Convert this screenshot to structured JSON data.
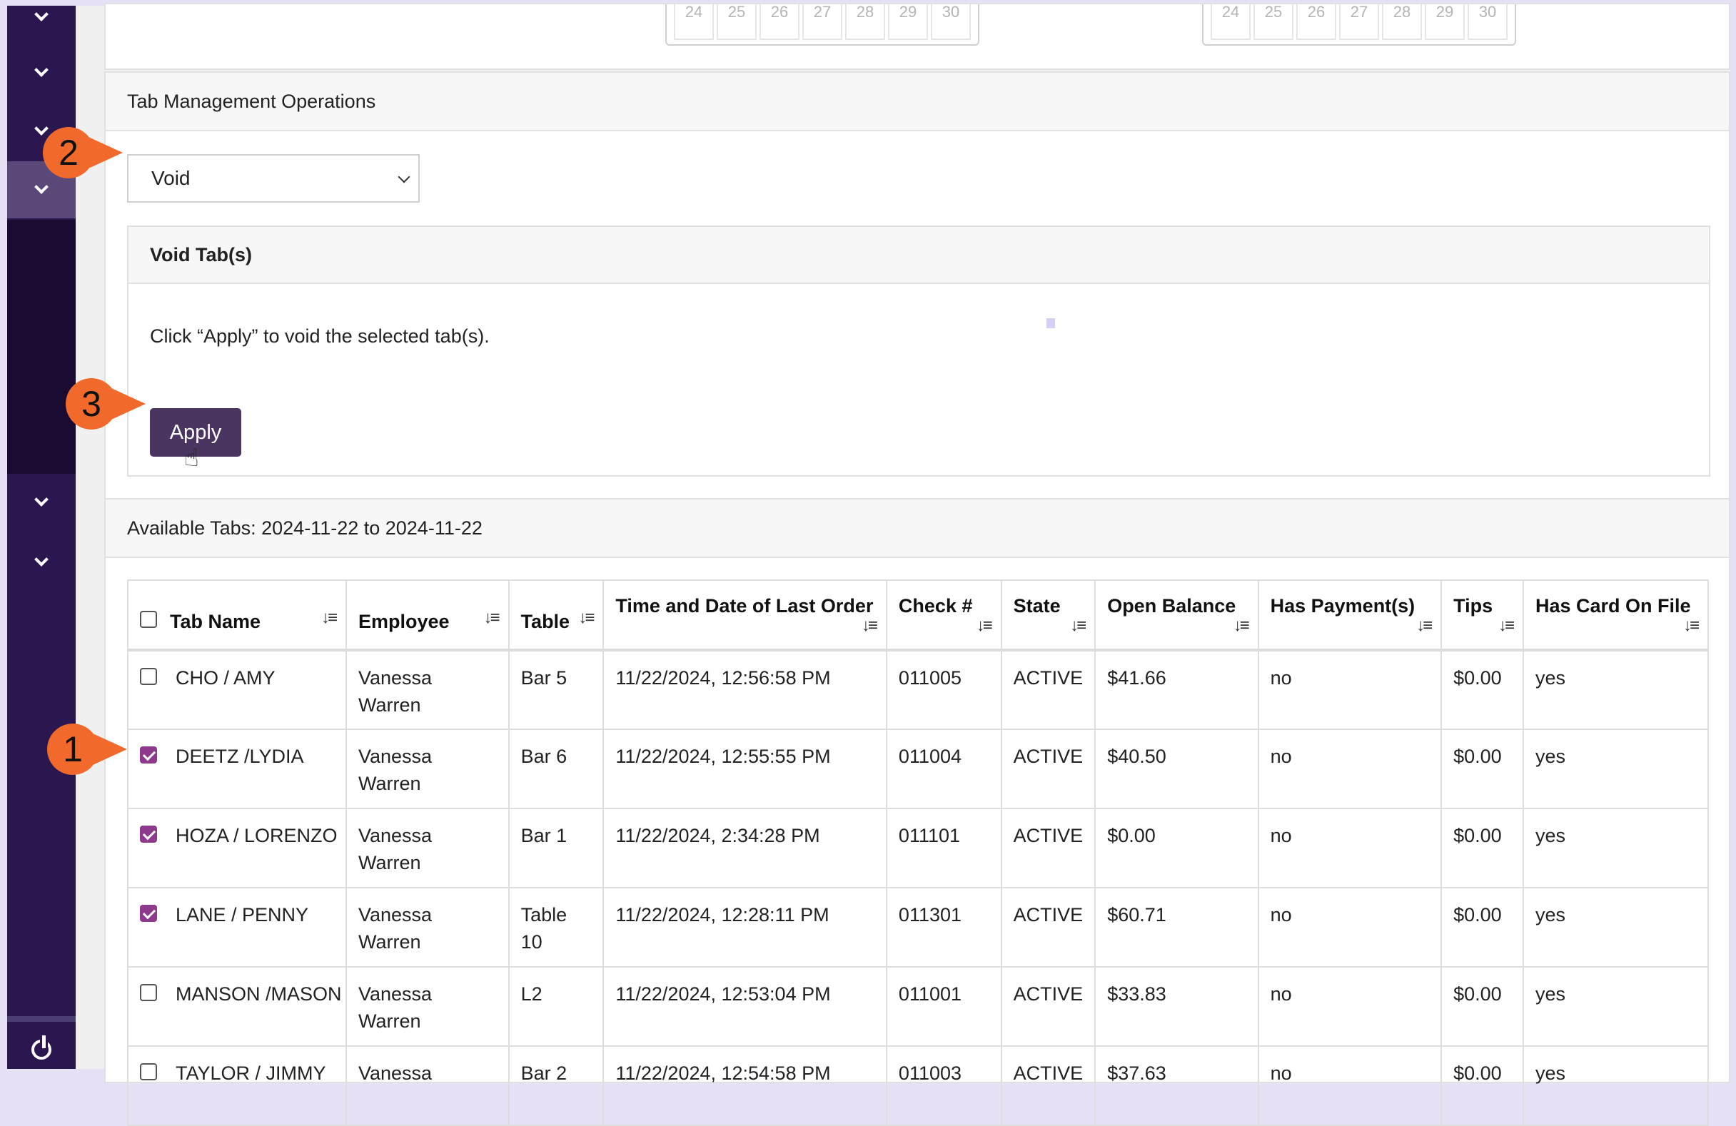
{
  "sidebar": {
    "items": [
      "chevron-down-icon",
      "chevron-down-icon",
      "chevron-down-icon",
      "chevron-down-icon",
      "chevron-down-icon",
      "chevron-down-icon"
    ],
    "power": "power-icon"
  },
  "calendar": {
    "left": [
      "24",
      "25",
      "26",
      "27",
      "28",
      "29",
      "30"
    ],
    "right": [
      "24",
      "25",
      "26",
      "27",
      "28",
      "29",
      "30"
    ]
  },
  "tab_management": {
    "title": "Tab Management Operations",
    "operation_value": "Void",
    "void_card": {
      "title": "Void Tab(s)",
      "instruction": "Click “Apply” to void the selected tab(s).",
      "apply_label": "Apply"
    }
  },
  "available_tabs": {
    "title": "Available Tabs: 2024-11-22 to 2024-11-22",
    "columns": [
      "Tab Name",
      "Employee",
      "Table",
      "Time and Date of Last Order",
      "Check #",
      "State",
      "Open Balance",
      "Has Payment(s)",
      "Tips",
      "Has Card On File"
    ],
    "rows": [
      {
        "checked": false,
        "tab": "CHO / AMY",
        "employee": "Vanessa Warren",
        "table": "Bar 5",
        "time": "11/22/2024, 12:56:58 PM",
        "check": "011005",
        "state": "ACTIVE",
        "balance": "$41.66",
        "payments": "no",
        "tips": "$0.00",
        "card": "yes"
      },
      {
        "checked": true,
        "tab": "DEETZ /LYDIA",
        "employee": "Vanessa Warren",
        "table": "Bar 6",
        "time": "11/22/2024, 12:55:55 PM",
        "check": "011004",
        "state": "ACTIVE",
        "balance": "$40.50",
        "payments": "no",
        "tips": "$0.00",
        "card": "yes"
      },
      {
        "checked": true,
        "tab": "HOZA / LORENZO",
        "employee": "Vanessa Warren",
        "table": "Bar 1",
        "time": "11/22/2024, 2:34:28 PM",
        "check": "011101",
        "state": "ACTIVE",
        "balance": "$0.00",
        "payments": "no",
        "tips": "$0.00",
        "card": "yes"
      },
      {
        "checked": true,
        "tab": "LANE / PENNY",
        "employee": "Vanessa Warren",
        "table": "Table 10",
        "time": "11/22/2024, 12:28:11 PM",
        "check": "011301",
        "state": "ACTIVE",
        "balance": "$60.71",
        "payments": "no",
        "tips": "$0.00",
        "card": "yes"
      },
      {
        "checked": false,
        "tab": "MANSON /MASON",
        "employee": "Vanessa Warren",
        "table": "L2",
        "time": "11/22/2024, 12:53:04 PM",
        "check": "011001",
        "state": "ACTIVE",
        "balance": "$33.83",
        "payments": "no",
        "tips": "$0.00",
        "card": "yes"
      },
      {
        "checked": false,
        "tab": "TAYLOR / JIMMY",
        "employee": "Vanessa",
        "table": "Bar 2",
        "time": "11/22/2024, 12:54:58 PM",
        "check": "011003",
        "state": "ACTIVE",
        "balance": "$37.63",
        "payments": "no",
        "tips": "$0.00",
        "card": "yes"
      }
    ]
  },
  "callouts": [
    "1",
    "2",
    "3"
  ]
}
